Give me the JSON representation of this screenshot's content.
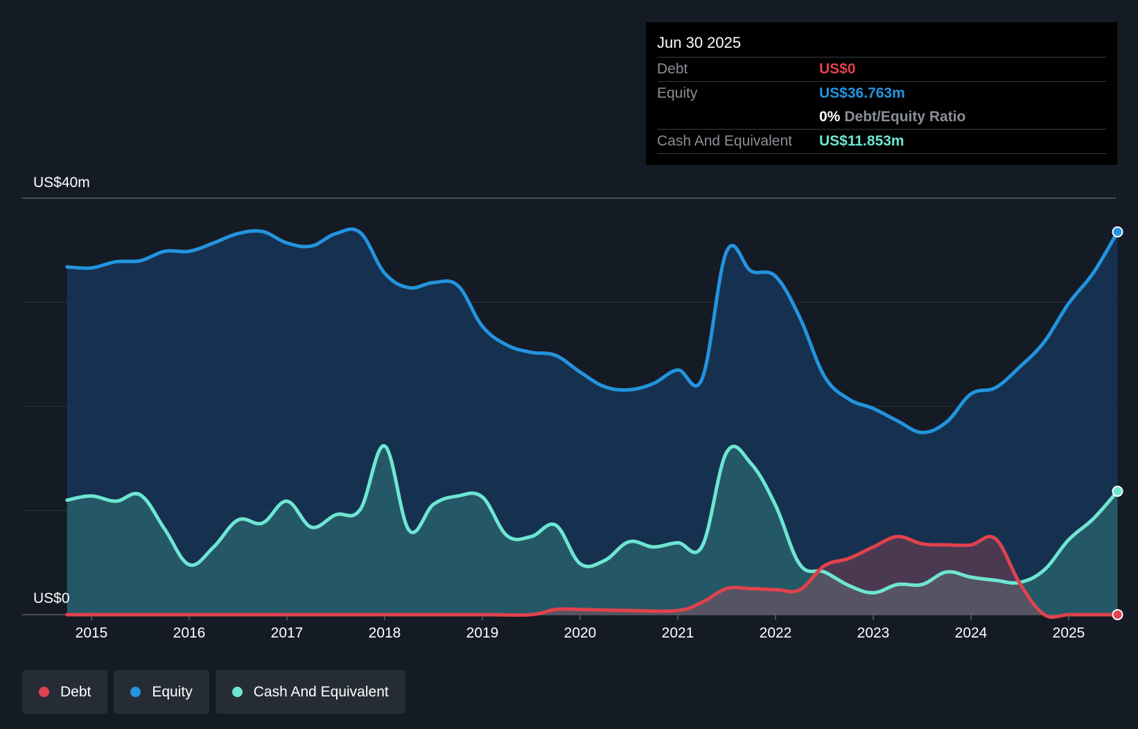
{
  "tooltip": {
    "date": "Jun 30 2025",
    "debt_label": "Debt",
    "debt_value": "US$0",
    "equity_label": "Equity",
    "equity_value": "US$36.763m",
    "ratio_pct": "0%",
    "ratio_label": "Debt/Equity Ratio",
    "cash_label": "Cash And Equivalent",
    "cash_value": "US$11.853m"
  },
  "legend": {
    "debt": "Debt",
    "equity": "Equity",
    "cash": "Cash And Equivalent"
  },
  "colors": {
    "debt": "#e0424d",
    "equity": "#2394df",
    "cash": "#6ee6d2",
    "background": "#151b24"
  },
  "chart_data": {
    "type": "area",
    "title": "",
    "ylabel": "",
    "ylim": [
      0,
      40
    ],
    "y_top_label": "US$40m",
    "y_bottom_label": "US$0",
    "xlim": [
      2014.5,
      2025.5
    ],
    "x_ticks": [
      2015,
      2016,
      2017,
      2018,
      2019,
      2020,
      2021,
      2022,
      2023,
      2024,
      2025
    ],
    "x_tick_labels": [
      "2015",
      "2016",
      "2017",
      "2018",
      "2019",
      "2020",
      "2021",
      "2022",
      "2023",
      "2024",
      "2025"
    ],
    "series": [
      {
        "name": "Equity",
        "x": [
          2014.75,
          2015.0,
          2015.25,
          2015.5,
          2015.75,
          2016.0,
          2016.25,
          2016.5,
          2016.75,
          2017.0,
          2017.25,
          2017.5,
          2017.75,
          2018.0,
          2018.25,
          2018.5,
          2018.75,
          2019.0,
          2019.25,
          2019.5,
          2019.75,
          2020.0,
          2020.25,
          2020.5,
          2020.75,
          2021.0,
          2021.25,
          2021.5,
          2021.75,
          2022.0,
          2022.25,
          2022.5,
          2022.75,
          2023.0,
          2023.25,
          2023.5,
          2023.75,
          2024.0,
          2024.25,
          2024.5,
          2024.75,
          2025.0,
          2025.25,
          2025.5
        ],
        "values": [
          33.4,
          33.3,
          33.9,
          34.0,
          34.9,
          34.9,
          35.7,
          36.6,
          36.8,
          35.7,
          35.4,
          36.6,
          36.7,
          32.8,
          31.4,
          31.9,
          31.6,
          27.7,
          25.9,
          25.2,
          24.9,
          23.3,
          21.9,
          21.6,
          22.2,
          23.5,
          22.7,
          34.9,
          33.0,
          32.5,
          28.5,
          22.9,
          20.7,
          19.8,
          18.6,
          17.5,
          18.5,
          21.2,
          21.8,
          23.8,
          26.2,
          29.9,
          32.8,
          36.763
        ]
      },
      {
        "name": "Cash And Equivalent",
        "x": [
          2014.75,
          2015.0,
          2015.25,
          2015.5,
          2015.75,
          2016.0,
          2016.25,
          2016.5,
          2016.75,
          2017.0,
          2017.25,
          2017.5,
          2017.75,
          2018.0,
          2018.25,
          2018.5,
          2018.75,
          2019.0,
          2019.25,
          2019.5,
          2019.75,
          2020.0,
          2020.25,
          2020.5,
          2020.75,
          2021.0,
          2021.25,
          2021.5,
          2021.75,
          2022.0,
          2022.25,
          2022.5,
          2022.75,
          2023.0,
          2023.25,
          2023.5,
          2023.75,
          2024.0,
          2024.25,
          2024.5,
          2024.75,
          2025.0,
          2025.25,
          2025.5
        ],
        "values": [
          11.0,
          11.4,
          10.9,
          11.5,
          8.2,
          4.8,
          6.5,
          9.1,
          8.8,
          10.9,
          8.4,
          9.6,
          10.1,
          16.2,
          8.1,
          10.6,
          11.4,
          11.3,
          7.6,
          7.5,
          8.6,
          4.9,
          5.2,
          7.0,
          6.5,
          6.9,
          6.6,
          15.6,
          14.5,
          10.5,
          4.8,
          4.1,
          2.8,
          2.1,
          2.9,
          2.9,
          4.1,
          3.6,
          3.3,
          3.1,
          4.3,
          7.2,
          9.2,
          11.853
        ]
      },
      {
        "name": "Debt",
        "x": [
          2014.75,
          2015.0,
          2016.0,
          2017.0,
          2018.0,
          2019.0,
          2019.5,
          2019.75,
          2020.0,
          2020.5,
          2021.0,
          2021.25,
          2021.5,
          2021.75,
          2022.0,
          2022.25,
          2022.5,
          2022.75,
          2023.0,
          2023.25,
          2023.5,
          2023.75,
          2024.0,
          2024.25,
          2024.5,
          2024.75,
          2025.0,
          2025.25,
          2025.5
        ],
        "values": [
          0.0,
          0.0,
          0.0,
          0.0,
          0.0,
          0.0,
          0.0,
          0.5,
          0.5,
          0.4,
          0.4,
          1.2,
          2.5,
          2.5,
          2.4,
          2.4,
          4.7,
          5.4,
          6.5,
          7.5,
          6.8,
          6.7,
          6.7,
          7.3,
          3.0,
          0.0,
          0.0,
          0.0,
          0.0
        ]
      }
    ]
  }
}
